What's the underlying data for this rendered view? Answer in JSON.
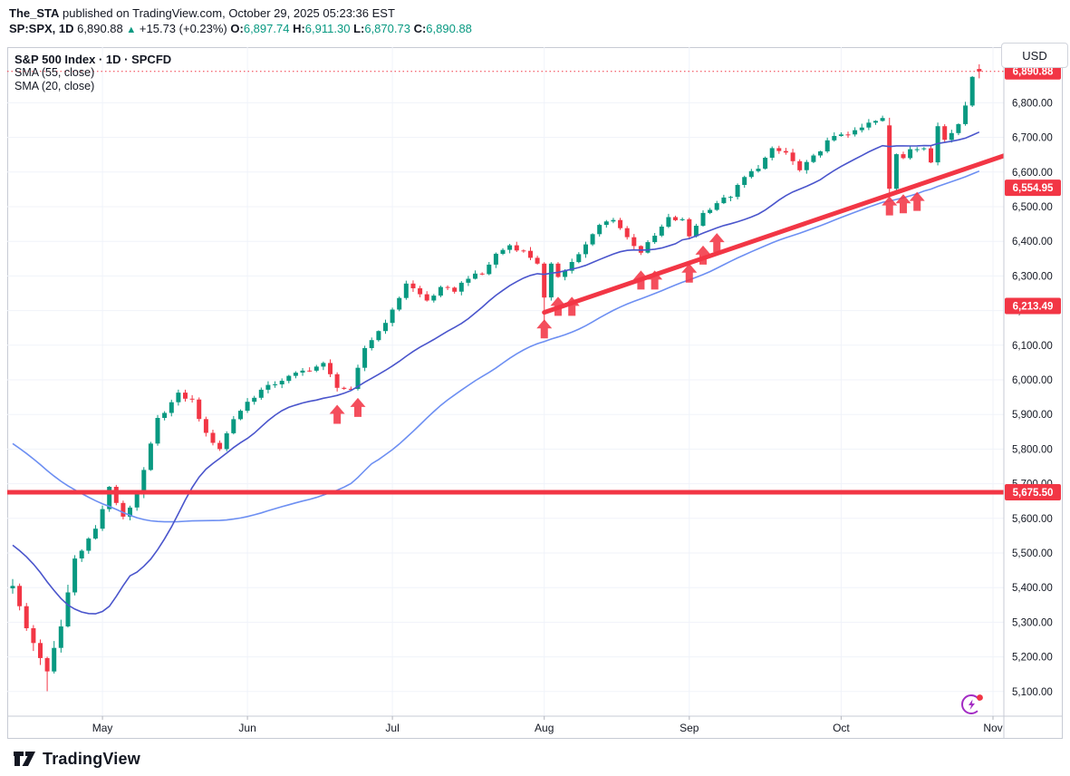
{
  "header": {
    "author": "The_STA",
    "published": " published on TradingView.com, October 29, 2025 05:23:36 EST",
    "symbol": "SP:SPX, 1D",
    "last": "6,890.88",
    "arrow": "▲",
    "change": "+15.73 (+0.23%)",
    "o_label": "O:",
    "o_value": "6,897.74",
    "h_label": "H:",
    "h_value": "6,911.30",
    "l_label": "L:",
    "l_value": "6,870.73",
    "c_label": "C:",
    "c_value": "6,890.88"
  },
  "legend": {
    "title": "S&P 500 Index · 1D · SPCFD",
    "sma55": "SMA (55, close)",
    "sma20": "SMA (20, close)"
  },
  "axis": {
    "currency": "USD"
  },
  "footer": {
    "brand": "TradingView"
  },
  "colors": {
    "up": "#089981",
    "down": "#f23645",
    "accent_red": "#f23645",
    "sma20": "#4a55cc",
    "sma55": "#6d8ff2",
    "grid": "#f0f3fa",
    "axis_text": "#131722",
    "border": "#c7cbd4",
    "tick": "#b2b5be",
    "badge_text": "#ffffff",
    "ideas_purple": "#a32cc4"
  },
  "chart_data": {
    "type": "candlestick",
    "title": "S&P 500 Index · 1D · SPCFD",
    "symbol": "SP:SPX",
    "timeframe": "1D",
    "exchange": "SPCFD",
    "currency": "USD",
    "last_price": 6890.88,
    "last_day": 140,
    "pre_days": 60,
    "legend_position": "top-left",
    "grid": true,
    "indicators": [
      {
        "name": "SMA",
        "period": 55,
        "source": "close"
      },
      {
        "name": "SMA",
        "period": 20,
        "source": "close"
      }
    ],
    "y_axis": {
      "min": 5029,
      "max": 6961,
      "tick_step": 100,
      "ticks": [
        5100,
        5200,
        5300,
        5400,
        5500,
        5600,
        5700,
        5800,
        5900,
        6000,
        6100,
        6200,
        6300,
        6400,
        6500,
        6600,
        6700,
        6800
      ]
    },
    "x_axis": {
      "months": [
        {
          "label": "May",
          "day": 13
        },
        {
          "label": "Jun",
          "day": 34
        },
        {
          "label": "Jul",
          "day": 55
        },
        {
          "label": "Aug",
          "day": 77
        },
        {
          "label": "Sep",
          "day": 98
        },
        {
          "label": "Oct",
          "day": 120
        },
        {
          "label": "Nov",
          "day": 142
        }
      ]
    },
    "price_labels": [
      {
        "price": 6890.88,
        "label": "6,890.88"
      },
      {
        "price": 6554.95,
        "label": "6,554.95"
      },
      {
        "price": 6213.49,
        "label": "6,213.49"
      },
      {
        "price": 5675.5,
        "label": "5,675.50"
      }
    ],
    "current_price_line": {
      "price": 6890.88,
      "style": "dotted"
    },
    "horizontal_line": {
      "price": 5675.5,
      "width": 5
    },
    "trend_line": {
      "from": {
        "day": 77,
        "price": 6195
      },
      "to": {
        "day": 144,
        "price": 6650
      },
      "width": 5
    },
    "buy_arrows": [
      {
        "day": 47,
        "price": 5928
      },
      {
        "day": 50,
        "price": 5948
      },
      {
        "day": 77,
        "price": 6175
      },
      {
        "day": 79,
        "price": 6240
      },
      {
        "day": 81,
        "price": 6240
      },
      {
        "day": 91,
        "price": 6316
      },
      {
        "day": 93,
        "price": 6316
      },
      {
        "day": 98,
        "price": 6336
      },
      {
        "day": 100,
        "price": 6388
      },
      {
        "day": 102,
        "price": 6424
      },
      {
        "day": 127,
        "price": 6530
      },
      {
        "day": 129,
        "price": 6536
      },
      {
        "day": 131,
        "price": 6543
      }
    ],
    "exact_days": [
      0,
      5,
      77,
      127,
      139,
      140
    ],
    "special_candles": {
      "5": {
        "low": 5101
      },
      "77": {
        "low": 6168
      },
      "127": {
        "open": 6735,
        "high": 6757,
        "close": 6552,
        "low": 6540
      },
      "140": {
        "open": 6897.74,
        "high": 6911.3,
        "low": 6870.73,
        "close": 6890.88
      }
    },
    "close_waypoints": [
      [
        -60,
        6090
      ],
      [
        -40,
        6120
      ],
      [
        -28,
        5855
      ],
      [
        -18,
        5640
      ],
      [
        -12,
        5765
      ],
      [
        -8,
        5585
      ],
      [
        -6,
        5396
      ],
      [
        -5,
        5075
      ],
      [
        -4,
        4983
      ],
      [
        -3,
        5060
      ],
      [
        -2,
        5456
      ],
      [
        -1,
        5398
      ],
      [
        0,
        5405
      ],
      [
        2,
        5282
      ],
      [
        5,
        5158
      ],
      [
        7,
        5288
      ],
      [
        9,
        5484
      ],
      [
        12,
        5569
      ],
      [
        14,
        5687
      ],
      [
        16,
        5606
      ],
      [
        18,
        5663
      ],
      [
        21,
        5886
      ],
      [
        24,
        5958
      ],
      [
        26,
        5940
      ],
      [
        28,
        5842
      ],
      [
        30,
        5802
      ],
      [
        32,
        5888
      ],
      [
        34,
        5936
      ],
      [
        36,
        5970
      ],
      [
        39,
        6000
      ],
      [
        42,
        6025
      ],
      [
        45,
        6045
      ],
      [
        47,
        5982
      ],
      [
        49,
        5968
      ],
      [
        51,
        6092
      ],
      [
        53,
        6141
      ],
      [
        55,
        6198
      ],
      [
        57,
        6280
      ],
      [
        60,
        6229
      ],
      [
        62,
        6263
      ],
      [
        64,
        6259
      ],
      [
        66,
        6297
      ],
      [
        68,
        6305
      ],
      [
        70,
        6363
      ],
      [
        72,
        6389
      ],
      [
        74,
        6370
      ],
      [
        76,
        6339
      ],
      [
        77,
        6238
      ],
      [
        78,
        6330
      ],
      [
        79,
        6300
      ],
      [
        81,
        6340
      ],
      [
        83,
        6389
      ],
      [
        85,
        6446
      ],
      [
        87,
        6466
      ],
      [
        89,
        6411
      ],
      [
        91,
        6370
      ],
      [
        93,
        6415
      ],
      [
        95,
        6466
      ],
      [
        97,
        6460
      ],
      [
        98,
        6415
      ],
      [
        100,
        6481
      ],
      [
        102,
        6512
      ],
      [
        104,
        6532
      ],
      [
        106,
        6584
      ],
      [
        108,
        6615
      ],
      [
        110,
        6664
      ],
      [
        112,
        6656
      ],
      [
        114,
        6604
      ],
      [
        116,
        6643
      ],
      [
        118,
        6688
      ],
      [
        120,
        6711
      ],
      [
        122,
        6715
      ],
      [
        124,
        6740
      ],
      [
        126,
        6753
      ],
      [
        127,
        6552
      ],
      [
        128,
        6654
      ],
      [
        129,
        6644
      ],
      [
        130,
        6671
      ],
      [
        132,
        6664
      ],
      [
        133,
        6629
      ],
      [
        134,
        6735
      ],
      [
        135,
        6699
      ],
      [
        137,
        6738
      ],
      [
        138,
        6792
      ],
      [
        139,
        6875
      ],
      [
        140,
        6890.88
      ]
    ]
  }
}
